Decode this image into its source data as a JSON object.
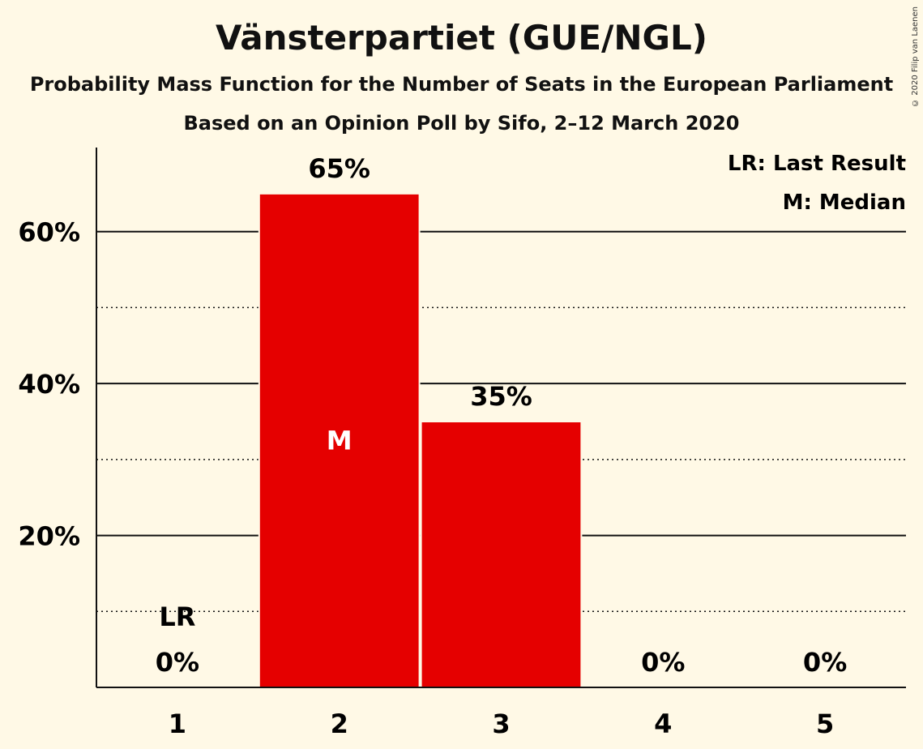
{
  "title": "Vänsterpartiet (GUE/NGL)",
  "subtitle": "Probability Mass Function for the Number of Seats in the European Parliament",
  "subtitle2": "Based on an Opinion Poll by Sifo, 2–12 March 2020",
  "copyright": "© 2020 Filip van Laenen",
  "legend": {
    "lr": "LR: Last Result",
    "m": "M: Median"
  },
  "colors": {
    "bar": "#e50000",
    "background": "#fff9e6"
  },
  "chart_data": {
    "type": "bar",
    "categories": [
      "1",
      "2",
      "3",
      "4",
      "5"
    ],
    "values": [
      0,
      65,
      35,
      0,
      0
    ],
    "value_labels": [
      "0%",
      "65%",
      "35%",
      "0%",
      "0%"
    ],
    "ylim": [
      0,
      70
    ],
    "yticks": [
      20,
      40,
      60
    ],
    "ytick_labels": [
      "20%",
      "40%",
      "60%"
    ],
    "minor_gridlines": [
      10,
      30,
      50
    ],
    "last_result": {
      "category": "1",
      "label": "LR"
    },
    "median": {
      "category": "2",
      "label": "M"
    },
    "legend_position": "top-right"
  }
}
